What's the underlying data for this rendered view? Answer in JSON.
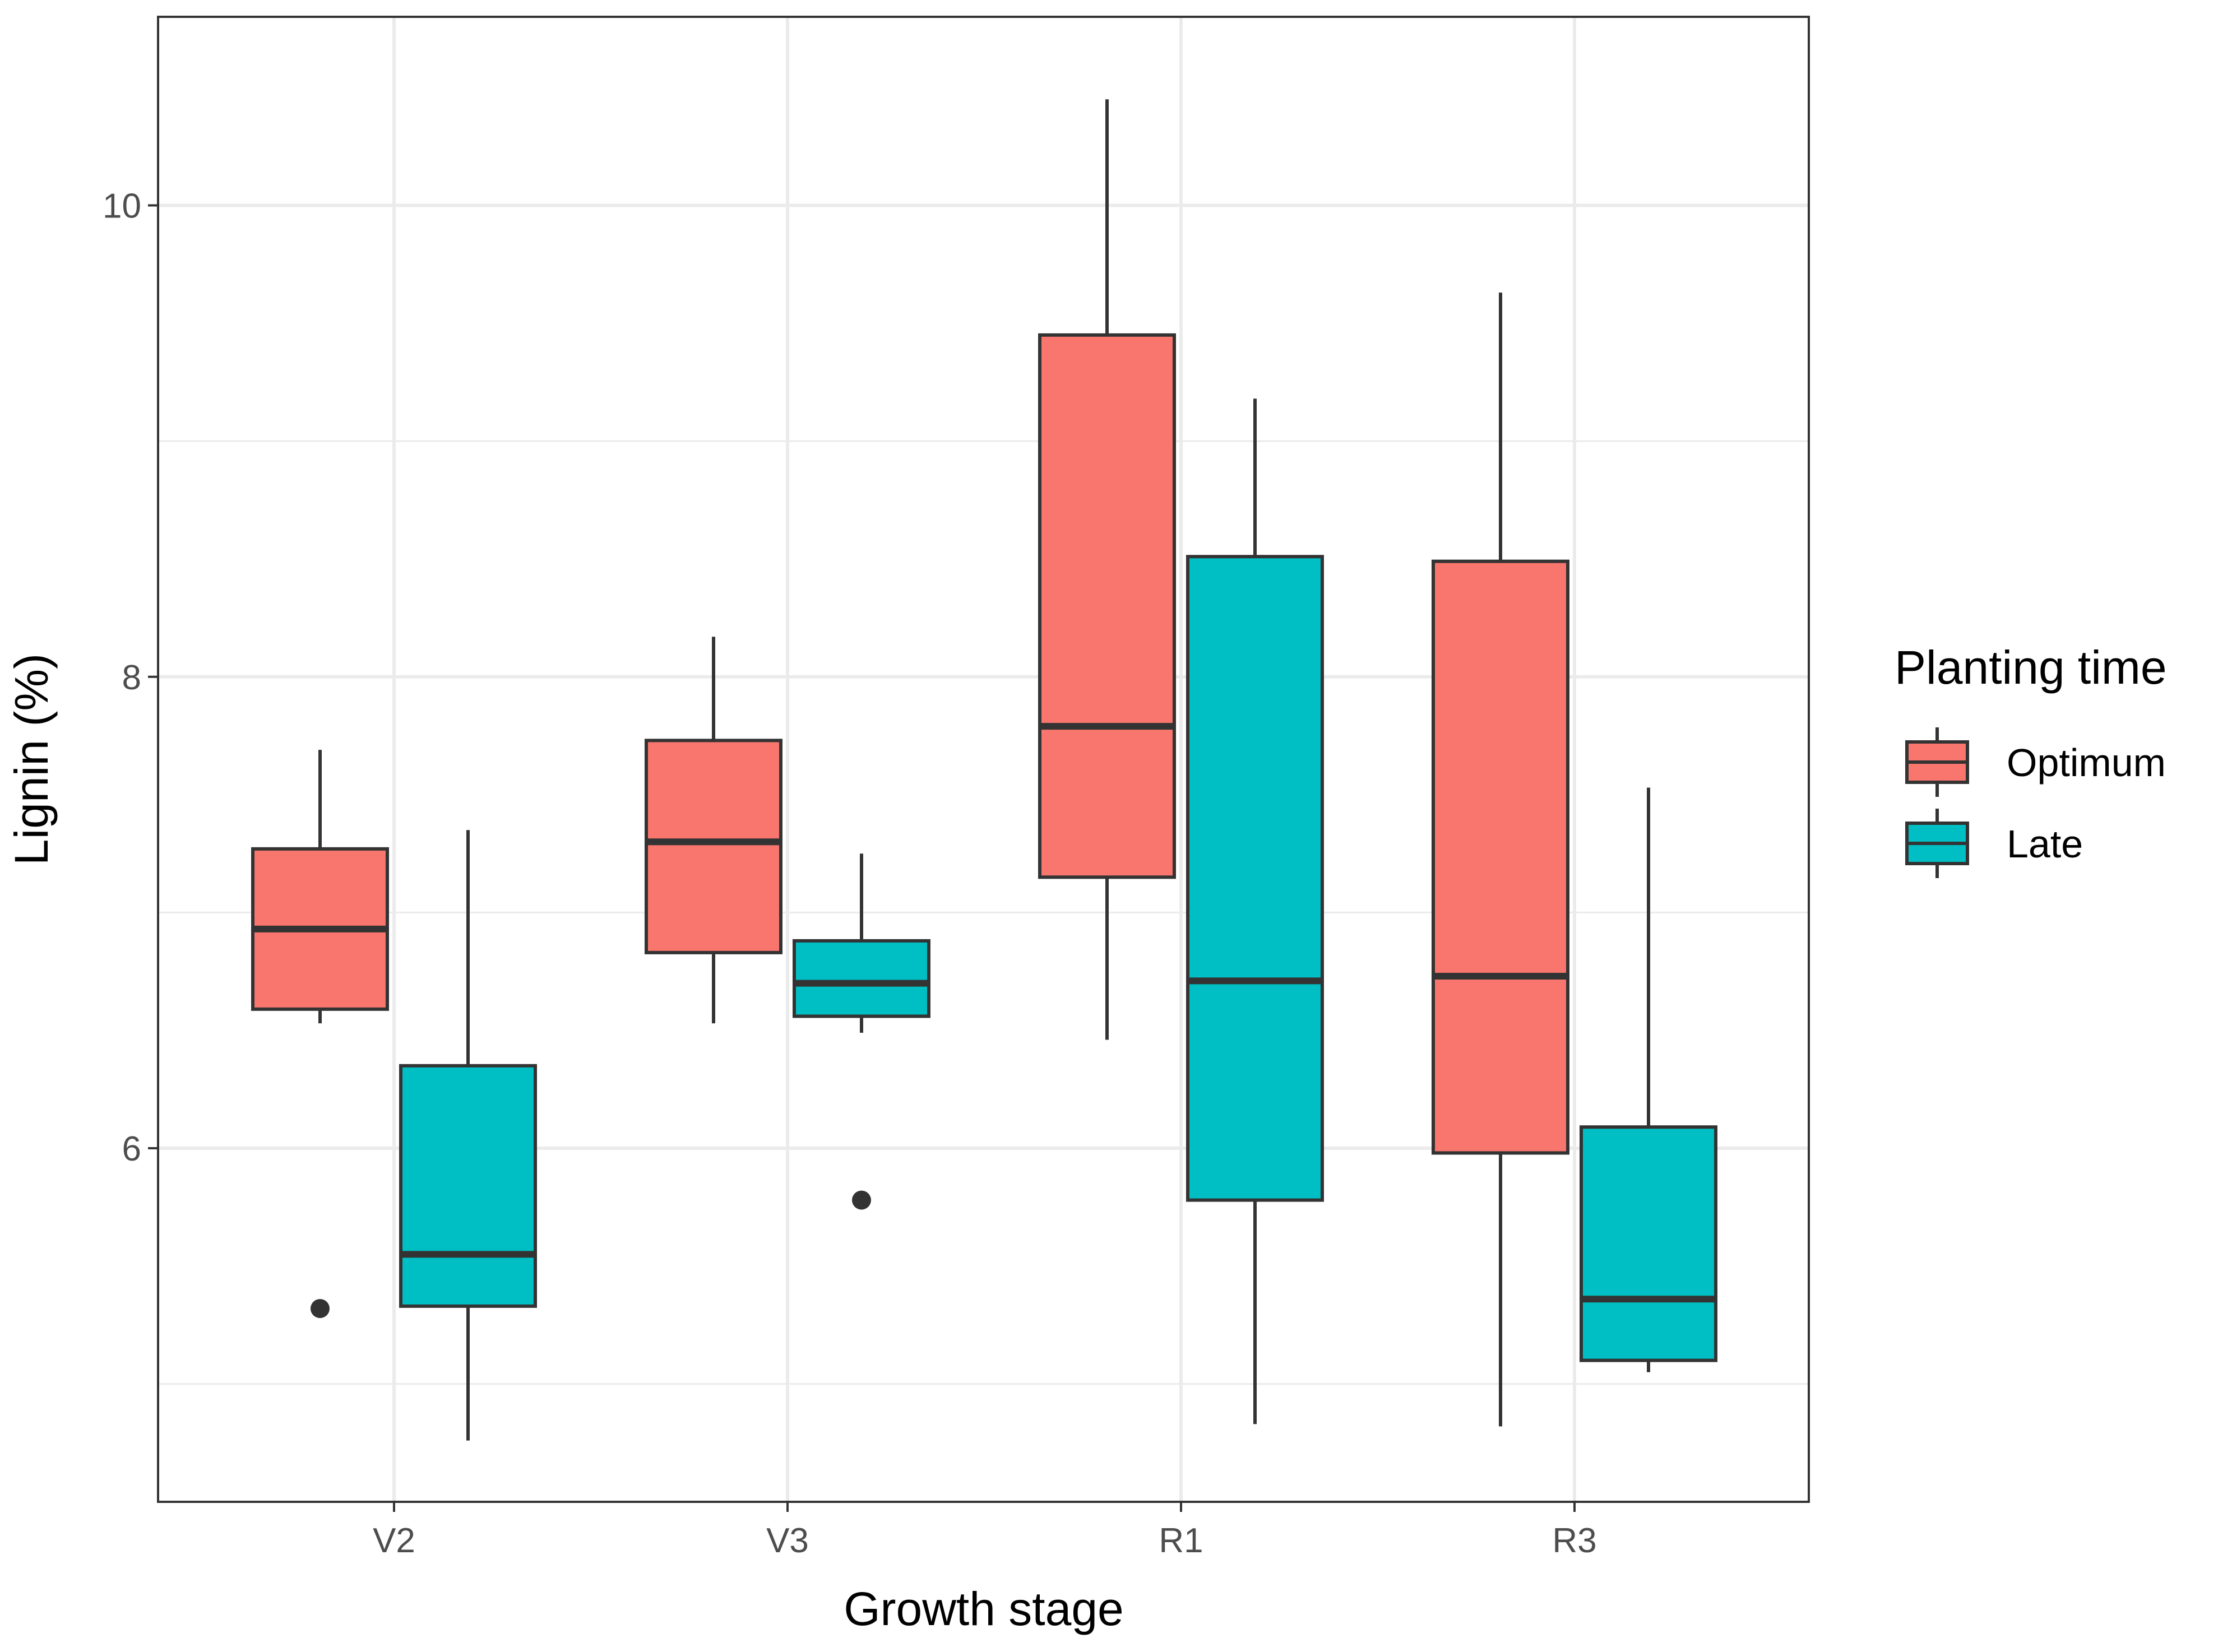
{
  "chart_data": {
    "type": "boxplot",
    "xlabel": "Growth stage",
    "ylabel": "Lignin (%)",
    "categories": [
      "V2",
      "V3",
      "R1",
      "R3"
    ],
    "ylim": [
      4.5,
      10.8
    ],
    "yticks": [
      6,
      8,
      10
    ],
    "ytick_labels": [
      "6",
      "8",
      "10"
    ],
    "minor_gridlines": [
      5,
      7,
      9
    ],
    "grid": true,
    "legend": {
      "title": "Planting time",
      "position": "right",
      "entries": [
        "Optimum",
        "Late"
      ]
    },
    "series": [
      {
        "name": "Optimum",
        "color": "#F8766D",
        "boxes": [
          {
            "category": "V2",
            "whisker_low": 6.53,
            "q1": 6.59,
            "median": 6.93,
            "q3": 7.27,
            "whisker_high": 7.69,
            "outliers": [
              5.32
            ]
          },
          {
            "category": "V3",
            "whisker_low": 6.53,
            "q1": 6.83,
            "median": 7.3,
            "q3": 7.73,
            "whisker_high": 8.17,
            "outliers": []
          },
          {
            "category": "R1",
            "whisker_low": 6.46,
            "q1": 7.15,
            "median": 7.79,
            "q3": 9.45,
            "whisker_high": 10.45,
            "outliers": []
          },
          {
            "category": "R3",
            "whisker_low": 4.82,
            "q1": 5.98,
            "median": 6.73,
            "q3": 8.49,
            "whisker_high": 9.63,
            "outliers": []
          }
        ]
      },
      {
        "name": "Late",
        "color": "#00BFC4",
        "boxes": [
          {
            "category": "V2",
            "whisker_low": 4.76,
            "q1": 5.33,
            "median": 5.55,
            "q3": 6.35,
            "whisker_high": 7.35,
            "outliers": []
          },
          {
            "category": "V3",
            "whisker_low": 6.49,
            "q1": 6.56,
            "median": 6.7,
            "q3": 6.88,
            "whisker_high": 7.25,
            "outliers": [
              5.78
            ]
          },
          {
            "category": "R1",
            "whisker_low": 4.83,
            "q1": 5.78,
            "median": 6.71,
            "q3": 8.51,
            "whisker_high": 9.18,
            "outliers": []
          },
          {
            "category": "R3",
            "whisker_low": 5.05,
            "q1": 5.1,
            "median": 5.36,
            "q3": 6.09,
            "whisker_high": 7.53,
            "outliers": []
          }
        ]
      }
    ]
  }
}
